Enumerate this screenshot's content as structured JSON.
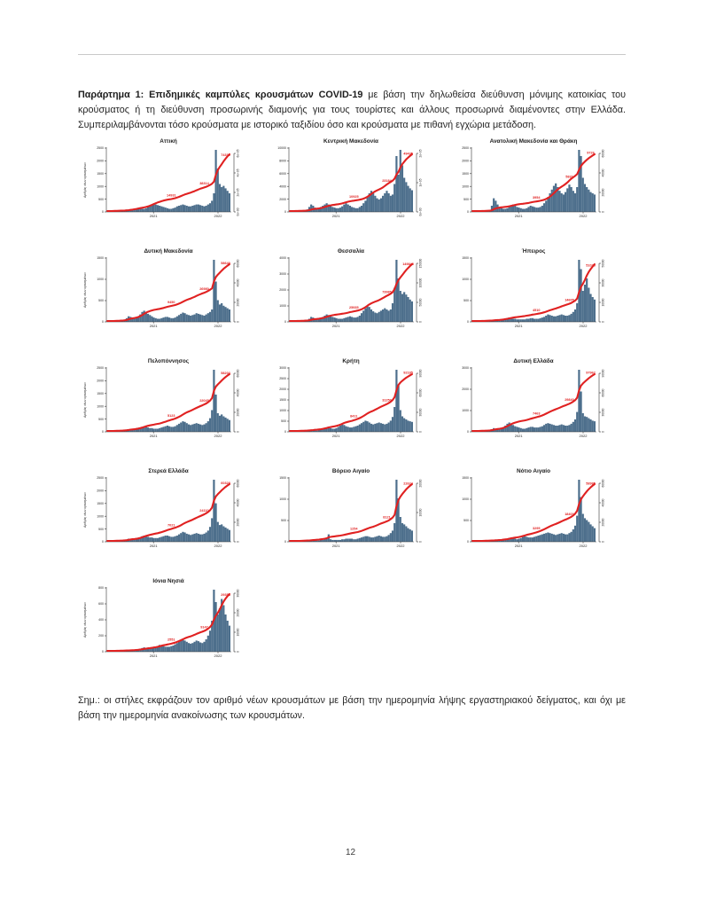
{
  "page": {
    "number": "12"
  },
  "header": {
    "bold": "Παράρτημα 1: Επιδημικές καμπύλες κρουσμάτων COVID-19",
    "text": " με βάση την δηλωθείσα διεύθυνση μόνιμης κατοικίας του κρούσματος ή τη διεύθυνση προσωρινής διαμονής για τους τουρίστες και άλλους προσωρινά διαμένοντες στην Ελλάδα. Συμπεριλαμβάνονται τόσο κρούσματα με ιστορικό ταξιδίου όσο και κρούσματα με πιθανή εγχώρια μετάδοση."
  },
  "note": "Σημ.: οι στήλες εκφράζουν τον αριθμό νέων κρουσμάτων με βάση την ημερομηνία λήψης εργαστηριακού δείγματος, και όχι με βάση την ημερομηνία ανακοίνωσης των κρουσμάτων.",
  "colors": {
    "bar": "#4d6f8c",
    "line": "#e02121",
    "annotation": "#e02121",
    "axis_text": "#1a1a1a"
  },
  "axis": {
    "x_ticks": [
      "2021",
      "2022"
    ],
    "x_tick_pos": [
      0.38,
      0.9
    ],
    "ylabel": "Αριθμός νέων κρουσμάτων",
    "line_meaning": "Αθροιστικός αριθμός κρουσμάτων"
  },
  "chart_data": [
    {
      "type": "bar",
      "line_overlay": "cumulative",
      "slug": "attiki",
      "title": "Αττική",
      "left_ticks": [
        "0",
        "500",
        "1000",
        "1500",
        "2000",
        "2500"
      ],
      "right_ticks": [
        "0e+00",
        "2e+05",
        "4e+05",
        "6e+05"
      ],
      "annotations": [
        "14931",
        "38314",
        "74319"
      ],
      "show_ylabel": true,
      "bars": [
        0,
        0,
        0,
        1,
        1,
        1,
        1,
        1,
        1,
        2,
        2,
        3,
        4,
        4,
        5,
        5,
        6,
        6,
        5,
        5,
        6,
        8,
        10,
        12,
        13,
        12,
        11,
        10,
        9,
        8,
        7,
        6,
        5,
        5,
        6,
        7,
        9,
        10,
        11,
        12,
        11,
        10,
        9,
        9,
        10,
        11,
        12,
        12,
        11,
        10,
        9,
        10,
        12,
        14,
        18,
        30,
        100,
        70,
        45,
        40,
        42,
        38,
        34,
        30
      ]
    },
    {
      "type": "bar",
      "line_overlay": "cumulative",
      "slug": "kentriki-makedonia",
      "title": "Κεντρική Μακεδονία",
      "left_ticks": [
        "0",
        "2000",
        "4000",
        "6000",
        "8000",
        "10000"
      ],
      "right_ticks": [
        "0e+00",
        "1e+05",
        "2e+05"
      ],
      "annotations": [
        "10925",
        "23184",
        "49435"
      ],
      "show_ylabel": false,
      "bars": [
        0,
        0,
        0,
        1,
        1,
        1,
        1,
        2,
        2,
        4,
        8,
        12,
        10,
        7,
        5,
        6,
        8,
        10,
        12,
        14,
        12,
        10,
        8,
        7,
        6,
        6,
        7,
        9,
        12,
        14,
        12,
        10,
        8,
        7,
        6,
        6,
        8,
        10,
        14,
        18,
        24,
        30,
        34,
        30,
        26,
        22,
        20,
        22,
        26,
        30,
        34,
        30,
        26,
        28,
        45,
        90,
        60,
        100,
        75,
        55,
        48,
        42,
        38,
        35
      ]
    },
    {
      "type": "bar",
      "line_overlay": "cumulative",
      "slug": "anatoliki-makedonia-thraki",
      "title": "Ανατολική Μακεδονία και Θράκη",
      "left_ticks": [
        "0",
        "500",
        "1000",
        "1500",
        "2000",
        "2500"
      ],
      "right_ticks": [
        "0",
        "20000",
        "40000",
        "60000"
      ],
      "annotations": [
        "3954",
        "5831",
        "9726"
      ],
      "show_ylabel": false,
      "bars": [
        0,
        0,
        0,
        0,
        1,
        1,
        1,
        1,
        2,
        3,
        10,
        22,
        18,
        12,
        8,
        6,
        5,
        5,
        6,
        8,
        10,
        12,
        10,
        8,
        7,
        6,
        5,
        5,
        6,
        8,
        10,
        9,
        8,
        7,
        7,
        8,
        10,
        14,
        18,
        24,
        30,
        36,
        42,
        46,
        40,
        34,
        30,
        28,
        32,
        38,
        44,
        40,
        34,
        30,
        40,
        100,
        90,
        55,
        45,
        40,
        36,
        32,
        30,
        28
      ]
    },
    {
      "type": "bar",
      "line_overlay": "cumulative",
      "slug": "dytiki-makedonia",
      "title": "Δυτική Μακεδονία",
      "left_ticks": [
        "0",
        "500",
        "1000",
        "1500"
      ],
      "right_ticks": [
        "0",
        "20000",
        "40000",
        "60000"
      ],
      "annotations": [
        "9450",
        "26980",
        "58640"
      ],
      "show_ylabel": true,
      "bars": [
        0,
        0,
        0,
        0,
        1,
        1,
        1,
        2,
        2,
        3,
        6,
        9,
        8,
        6,
        5,
        6,
        8,
        12,
        16,
        18,
        16,
        13,
        11,
        9,
        7,
        6,
        5,
        5,
        6,
        7,
        8,
        8,
        7,
        6,
        6,
        7,
        9,
        11,
        13,
        15,
        14,
        12,
        11,
        10,
        11,
        12,
        14,
        13,
        12,
        11,
        10,
        12,
        14,
        16,
        20,
        100,
        65,
        35,
        28,
        30,
        26,
        24,
        22,
        20
      ]
    },
    {
      "type": "bar",
      "line_overlay": "cumulative",
      "slug": "thessalia",
      "title": "Θεσσαλία",
      "left_ticks": [
        "0",
        "1000",
        "2000",
        "3000",
        "4000"
      ],
      "right_ticks": [
        "0",
        "50000",
        "100000",
        "150000"
      ],
      "annotations": [
        "25935",
        "73985",
        "149845"
      ],
      "show_ylabel": false,
      "bars": [
        0,
        0,
        0,
        0,
        1,
        1,
        1,
        1,
        2,
        3,
        5,
        8,
        7,
        5,
        4,
        5,
        6,
        8,
        10,
        12,
        11,
        9,
        8,
        7,
        6,
        5,
        5,
        5,
        6,
        7,
        8,
        9,
        8,
        7,
        7,
        8,
        10,
        14,
        18,
        22,
        26,
        24,
        20,
        17,
        15,
        14,
        16,
        18,
        20,
        22,
        20,
        18,
        20,
        30,
        55,
        100,
        70,
        50,
        45,
        48,
        44,
        40,
        36,
        33
      ]
    },
    {
      "type": "bar",
      "line_overlay": "cumulative",
      "slug": "ipeiros",
      "title": "Ήπειρος",
      "left_ticks": [
        "0",
        "500",
        "1000",
        "1500"
      ],
      "right_ticks": [
        "0",
        "10000",
        "30000",
        "50000"
      ],
      "annotations": [
        "4510",
        "14605",
        "51025"
      ],
      "show_ylabel": false,
      "bars": [
        0,
        0,
        0,
        0,
        0,
        1,
        1,
        1,
        1,
        1,
        2,
        3,
        3,
        2,
        2,
        3,
        4,
        5,
        6,
        7,
        6,
        5,
        5,
        4,
        4,
        4,
        4,
        4,
        5,
        5,
        6,
        6,
        5,
        5,
        5,
        6,
        7,
        8,
        10,
        12,
        11,
        10,
        9,
        9,
        10,
        11,
        12,
        11,
        10,
        10,
        11,
        13,
        16,
        20,
        30,
        100,
        85,
        50,
        60,
        70,
        55,
        45,
        40,
        36
      ]
    },
    {
      "type": "bar",
      "line_overlay": "cumulative",
      "slug": "peloponnisos",
      "title": "Πελοπόννησος",
      "left_ticks": [
        "0",
        "500",
        "1000",
        "1500",
        "2000",
        "2500"
      ],
      "right_ticks": [
        "0",
        "20000",
        "40000",
        "60000"
      ],
      "annotations": [
        "5123",
        "22045",
        "58203"
      ],
      "show_ylabel": true,
      "bars": [
        0,
        0,
        0,
        0,
        1,
        1,
        1,
        1,
        1,
        2,
        3,
        4,
        4,
        3,
        3,
        4,
        5,
        6,
        8,
        9,
        8,
        7,
        6,
        6,
        5,
        5,
        5,
        6,
        7,
        8,
        9,
        10,
        9,
        8,
        8,
        9,
        11,
        13,
        15,
        17,
        16,
        14,
        12,
        11,
        12,
        13,
        14,
        13,
        12,
        11,
        12,
        14,
        17,
        22,
        35,
        100,
        60,
        30,
        26,
        28,
        25,
        23,
        21,
        19
      ]
    },
    {
      "type": "bar",
      "line_overlay": "cumulative",
      "slug": "kriti",
      "title": "Κρήτη",
      "left_ticks": [
        "0",
        "500",
        "1000",
        "1500",
        "2000",
        "2500",
        "3000"
      ],
      "right_ticks": [
        "0",
        "30000",
        "60000",
        "90000"
      ],
      "annotations": [
        "8411",
        "31250",
        "92185"
      ],
      "show_ylabel": false,
      "bars": [
        0,
        0,
        0,
        0,
        0,
        1,
        1,
        1,
        1,
        1,
        2,
        3,
        3,
        3,
        2,
        3,
        4,
        5,
        6,
        7,
        7,
        6,
        5,
        5,
        6,
        8,
        10,
        12,
        11,
        9,
        8,
        7,
        7,
        8,
        9,
        10,
        12,
        14,
        16,
        18,
        17,
        15,
        13,
        12,
        13,
        14,
        15,
        14,
        13,
        12,
        13,
        15,
        18,
        24,
        40,
        100,
        75,
        35,
        25,
        22,
        20,
        18,
        17,
        16
      ]
    },
    {
      "type": "bar",
      "line_overlay": "cumulative",
      "slug": "dytiki-ellada",
      "title": "Δυτική Ελλάδα",
      "left_ticks": [
        "0",
        "1000",
        "2000",
        "3000"
      ],
      "right_ticks": [
        "0",
        "30000",
        "60000",
        "90000"
      ],
      "annotations": [
        "7463",
        "29840",
        "97962"
      ],
      "show_ylabel": false,
      "bars": [
        0,
        0,
        0,
        0,
        1,
        1,
        1,
        1,
        1,
        2,
        4,
        6,
        5,
        4,
        4,
        5,
        7,
        10,
        13,
        15,
        13,
        11,
        9,
        8,
        7,
        6,
        5,
        5,
        6,
        7,
        8,
        8,
        7,
        7,
        7,
        8,
        9,
        11,
        13,
        14,
        13,
        12,
        11,
        10,
        10,
        11,
        12,
        11,
        10,
        10,
        11,
        13,
        16,
        20,
        32,
        100,
        65,
        30,
        25,
        24,
        22,
        20,
        18,
        17
      ]
    },
    {
      "type": "bar",
      "line_overlay": "cumulative",
      "slug": "sterea-ellada",
      "title": "Στερεά Ελλάδα",
      "left_ticks": [
        "0",
        "500",
        "1000",
        "1500",
        "2000",
        "2500"
      ],
      "right_ticks": [
        "0",
        "20000",
        "40000",
        "60000"
      ],
      "annotations": [
        "7021",
        "24110",
        "60328"
      ],
      "show_ylabel": true,
      "bars": [
        0,
        0,
        0,
        0,
        1,
        1,
        1,
        1,
        1,
        2,
        3,
        5,
        5,
        4,
        3,
        4,
        5,
        7,
        9,
        10,
        9,
        8,
        7,
        7,
        6,
        6,
        6,
        7,
        8,
        9,
        10,
        10,
        9,
        8,
        8,
        9,
        10,
        12,
        14,
        16,
        15,
        13,
        12,
        11,
        12,
        13,
        14,
        13,
        12,
        12,
        13,
        15,
        18,
        24,
        38,
        100,
        62,
        32,
        27,
        28,
        25,
        23,
        21,
        19
      ]
    },
    {
      "type": "bar",
      "line_overlay": "cumulative",
      "slug": "voreio-aigaio",
      "title": "Βόρειο Αιγαίο",
      "left_ticks": [
        "0",
        "500",
        "1000",
        "1500"
      ],
      "right_ticks": [
        "0",
        "10000",
        "20000"
      ],
      "annotations": [
        "1254",
        "8121",
        "22624"
      ],
      "show_ylabel": false,
      "bars": [
        0,
        0,
        0,
        0,
        0,
        0,
        1,
        1,
        1,
        1,
        1,
        2,
        2,
        2,
        2,
        2,
        3,
        3,
        4,
        5,
        12,
        4,
        3,
        3,
        3,
        3,
        3,
        4,
        4,
        5,
        5,
        5,
        5,
        4,
        4,
        5,
        6,
        7,
        8,
        9,
        9,
        8,
        7,
        7,
        8,
        9,
        10,
        9,
        8,
        8,
        9,
        11,
        14,
        18,
        30,
        100,
        70,
        40,
        30,
        28,
        25,
        22,
        20,
        18
      ]
    },
    {
      "type": "bar",
      "line_overlay": "cumulative",
      "slug": "notio-aigaio",
      "title": "Νότιο Αιγαίο",
      "left_ticks": [
        "0",
        "500",
        "1000",
        "1500"
      ],
      "right_ticks": [
        "0",
        "20000",
        "40000",
        "60000"
      ],
      "annotations": [
        "3295",
        "18401",
        "58985"
      ],
      "show_ylabel": false,
      "bars": [
        0,
        0,
        0,
        0,
        0,
        0,
        1,
        1,
        1,
        1,
        1,
        2,
        2,
        2,
        2,
        2,
        3,
        4,
        5,
        6,
        6,
        5,
        5,
        4,
        5,
        6,
        8,
        9,
        8,
        7,
        7,
        7,
        8,
        9,
        10,
        11,
        12,
        13,
        14,
        15,
        14,
        13,
        12,
        11,
        12,
        13,
        14,
        13,
        12,
        12,
        14,
        16,
        20,
        26,
        42,
        100,
        72,
        45,
        38,
        35,
        32,
        28,
        25,
        22
      ]
    },
    {
      "type": "bar",
      "line_overlay": "cumulative",
      "slug": "ionia-nisia",
      "title": "Ιόνια Νησιά",
      "left_ticks": [
        "0",
        "200",
        "400",
        "600",
        "800"
      ],
      "right_ticks": [
        "0",
        "10000",
        "20000",
        "30000"
      ],
      "annotations": [
        "2551",
        "9147",
        "29358"
      ],
      "show_ylabel": true,
      "bars": [
        0,
        0,
        0,
        0,
        0,
        1,
        1,
        1,
        1,
        1,
        2,
        2,
        2,
        2,
        2,
        3,
        4,
        5,
        6,
        7,
        6,
        6,
        5,
        5,
        6,
        7,
        9,
        11,
        10,
        9,
        8,
        8,
        8,
        9,
        10,
        12,
        14,
        16,
        18,
        20,
        18,
        16,
        14,
        13,
        14,
        16,
        18,
        17,
        15,
        14,
        16,
        20,
        26,
        34,
        50,
        100,
        80,
        60,
        70,
        85,
        75,
        60,
        50,
        42
      ]
    }
  ]
}
